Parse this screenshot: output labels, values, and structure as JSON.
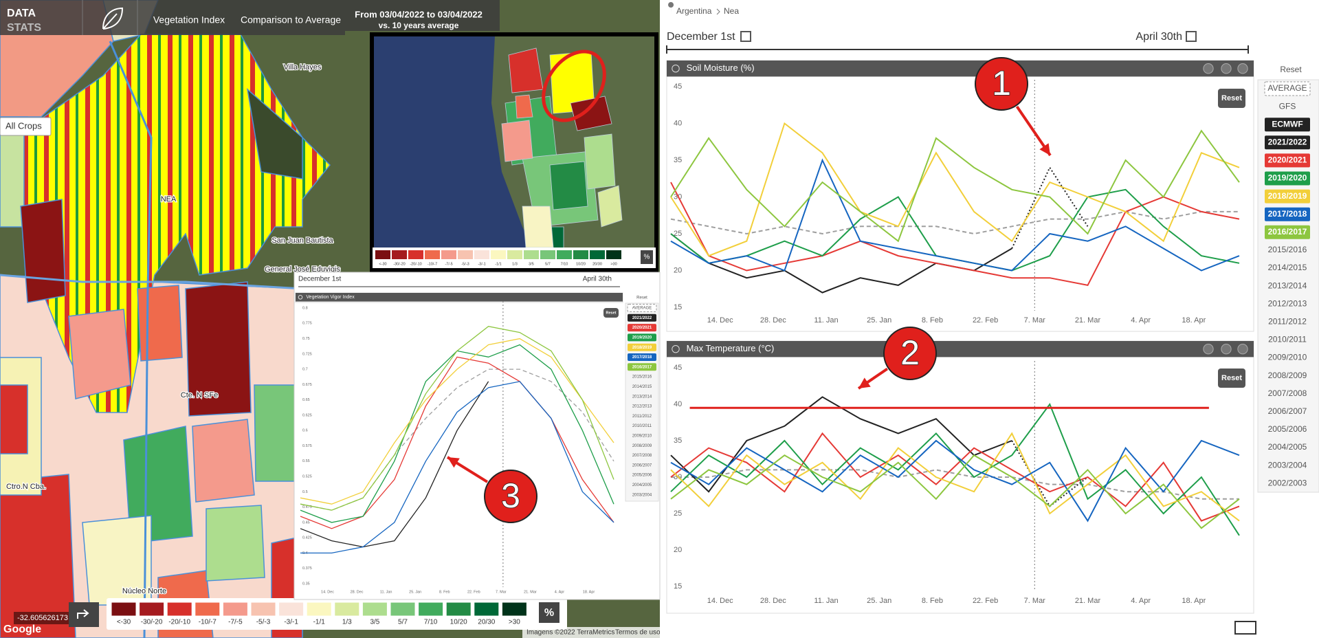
{
  "header": {
    "brand_top": "DATA",
    "brand_bottom": "STATS",
    "tab_index": "Vegetation Index",
    "tab_compare": "Comparison to Average",
    "date_range": "From 03/04/2022 to 03/04/2022",
    "comparison": "vs. 10 years average"
  },
  "map": {
    "labels": [
      "Villa Hayes",
      "NEA",
      "San Juan Bautista",
      "General José Eduvigis",
      "Cte. N SFe",
      "Ctro.N Cba.",
      "Núcleo Norte"
    ],
    "crop_filter": "All Crops",
    "coordinates": "-32.605626173",
    "attribution": [
      "Google",
      "Imagens ©2022 TerraMetrics",
      "Termos de uso"
    ],
    "unit": "%",
    "legend": [
      {
        "label": "<-30",
        "color": "#7b0f12"
      },
      {
        "label": "-30/-20",
        "color": "#a51b1f"
      },
      {
        "label": "-20/-10",
        "color": "#d7302b"
      },
      {
        "label": "-10/-7",
        "color": "#ef6a4c"
      },
      {
        "label": "-7/-5",
        "color": "#f49a8c"
      },
      {
        "label": "-5/-3",
        "color": "#f7c3b0"
      },
      {
        "label": "-3/-1",
        "color": "#fae3da"
      },
      {
        "label": "-1/1",
        "color": "#fbf7c0"
      },
      {
        "label": "1/3",
        "color": "#d9ea9f"
      },
      {
        "label": "3/5",
        "color": "#addd8e"
      },
      {
        "label": "5/7",
        "color": "#78c679"
      },
      {
        "label": "7/10",
        "color": "#41ab5d"
      },
      {
        "label": "10/20",
        "color": "#238b45"
      },
      {
        "label": "20/30",
        "color": "#006837"
      },
      {
        "label": ">30",
        "color": "#00331a"
      }
    ]
  },
  "breadcrumb": [
    "Argentina",
    "Nea"
  ],
  "period": {
    "start": "December 1st",
    "end": "April 30th"
  },
  "legend_panel": {
    "reset": "Reset",
    "gfs": "GFS",
    "older": [
      "2015/2016",
      "2014/2015",
      "2013/2014",
      "2012/2013",
      "2011/2012",
      "2010/2011",
      "2009/2010",
      "2008/2009",
      "2007/2008",
      "2006/2007",
      "2005/2006",
      "2004/2005",
      "2003/2004",
      "2002/2003"
    ]
  },
  "annotations": [
    "1",
    "2",
    "3"
  ],
  "chart_data": [
    {
      "type": "line",
      "title": "Soil Moisture (%)",
      "reset": "Reset",
      "x": [
        0,
        10,
        20,
        30,
        40,
        50,
        60,
        70,
        80,
        90,
        100,
        110,
        120,
        130,
        140,
        150
      ],
      "xlim": [
        0,
        150
      ],
      "ylim": [
        15,
        45
      ],
      "yticks": [
        45,
        40,
        35,
        30,
        25,
        20,
        15
      ],
      "grid": false,
      "marker_x": 96,
      "xticks": [
        {
          "value": 13,
          "label": "14. Dec"
        },
        {
          "value": 27,
          "label": "28. Dec"
        },
        {
          "value": 41,
          "label": "11. Jan"
        },
        {
          "value": 55,
          "label": "25. Jan"
        },
        {
          "value": 69,
          "label": "8. Feb"
        },
        {
          "value": 83,
          "label": "22. Feb"
        },
        {
          "value": 96,
          "label": "7. Mar"
        },
        {
          "value": 110,
          "label": "21. Mar"
        },
        {
          "value": 124,
          "label": "4. Apr"
        },
        {
          "value": 138,
          "label": "18. Apr"
        }
      ],
      "series": [
        {
          "name": "AVERAGE",
          "color": "#9e9e9e",
          "dash": "dashed",
          "values": [
            27,
            26,
            25,
            26,
            25,
            26,
            26,
            26,
            25,
            26,
            27,
            27,
            28,
            27,
            28,
            28
          ]
        },
        {
          "name": "ECMWF",
          "color": "#222222",
          "dash": "dotted",
          "values": [
            null,
            null,
            null,
            null,
            null,
            null,
            null,
            null,
            null,
            23,
            34,
            26,
            null,
            null,
            null,
            null
          ]
        },
        {
          "name": "2021/2022",
          "color": "#222222",
          "values": [
            25,
            21,
            19,
            20,
            17,
            19,
            18,
            21,
            20,
            23,
            null,
            null,
            null,
            null,
            null,
            null
          ]
        },
        {
          "name": "2020/2021",
          "color": "#e53935",
          "values": [
            32,
            22,
            20,
            21,
            22,
            24,
            22,
            21,
            20,
            19,
            19,
            18,
            28,
            30,
            28,
            27
          ]
        },
        {
          "name": "2019/2020",
          "color": "#1e9e4a",
          "values": [
            25,
            21,
            22,
            24,
            22,
            27,
            30,
            22,
            21,
            20,
            22,
            30,
            31,
            26,
            22,
            21
          ]
        },
        {
          "name": "2018/2019",
          "color": "#f2cf3a",
          "values": [
            30,
            22,
            24,
            40,
            36,
            28,
            26,
            36,
            28,
            24,
            32,
            30,
            28,
            24,
            36,
            34
          ]
        },
        {
          "name": "2017/2018",
          "color": "#1565c0",
          "values": [
            24,
            21,
            22,
            20,
            35,
            24,
            23,
            22,
            21,
            20,
            25,
            24,
            26,
            23,
            20,
            22
          ]
        },
        {
          "name": "2016/2017",
          "color": "#8dc63f",
          "values": [
            30,
            38,
            31,
            26,
            32,
            28,
            24,
            38,
            34,
            31,
            30,
            25,
            35,
            30,
            39,
            32
          ]
        }
      ]
    },
    {
      "type": "line",
      "title": "Max Temperature (°C)",
      "reset": "Reset",
      "x": [
        0,
        10,
        20,
        30,
        40,
        50,
        60,
        70,
        80,
        90,
        100,
        110,
        120,
        130,
        140,
        150
      ],
      "xlim": [
        0,
        150
      ],
      "ylim": [
        15,
        45
      ],
      "yticks": [
        45,
        40,
        35,
        30,
        25,
        20,
        15
      ],
      "grid": false,
      "marker_x": 96,
      "reference_line": 39.5,
      "xticks": [
        {
          "value": 13,
          "label": "14. Dec"
        },
        {
          "value": 27,
          "label": "28. Dec"
        },
        {
          "value": 41,
          "label": "11. Jan"
        },
        {
          "value": 55,
          "label": "25. Jan"
        },
        {
          "value": 69,
          "label": "8. Feb"
        },
        {
          "value": 83,
          "label": "22. Feb"
        },
        {
          "value": 96,
          "label": "7. Mar"
        },
        {
          "value": 110,
          "label": "21. Mar"
        },
        {
          "value": 124,
          "label": "4. Apr"
        },
        {
          "value": 138,
          "label": "18. Apr"
        }
      ],
      "series": [
        {
          "color": "#9e9e9e",
          "dash": "dashed",
          "values": [
            30,
            30,
            31,
            31,
            31,
            31,
            30,
            31,
            30,
            30,
            29,
            29,
            28,
            28,
            27,
            27
          ]
        },
        {
          "color": "#222222",
          "dash": "dotted",
          "values": [
            null,
            null,
            null,
            null,
            null,
            null,
            null,
            null,
            null,
            35,
            26,
            30,
            null,
            null,
            null,
            null
          ]
        },
        {
          "color": "#222222",
          "values": [
            33,
            28,
            35,
            37,
            41,
            38,
            36,
            38,
            33,
            35,
            null,
            null,
            null,
            null,
            null,
            null
          ]
        },
        {
          "color": "#e53935",
          "values": [
            30,
            34,
            32,
            28,
            36,
            30,
            33,
            29,
            34,
            31,
            28,
            30,
            26,
            32,
            24,
            26
          ]
        },
        {
          "color": "#1e9e4a",
          "values": [
            28,
            33,
            30,
            35,
            29,
            34,
            31,
            36,
            30,
            33,
            40,
            27,
            31,
            25,
            30,
            22
          ]
        },
        {
          "color": "#f2cf3a",
          "values": [
            31,
            26,
            33,
            29,
            32,
            27,
            34,
            30,
            28,
            36,
            25,
            29,
            33,
            26,
            28,
            24
          ]
        },
        {
          "color": "#1565c0",
          "values": [
            32,
            29,
            34,
            31,
            28,
            33,
            30,
            35,
            31,
            29,
            32,
            24,
            34,
            28,
            35,
            33
          ]
        },
        {
          "color": "#8dc63f",
          "values": [
            27,
            31,
            29,
            33,
            30,
            28,
            32,
            27,
            33,
            30,
            26,
            31,
            25,
            29,
            23,
            27
          ]
        }
      ]
    },
    {
      "type": "line",
      "title": "Vegetation Vigor Index",
      "reset": "Reset",
      "x": [
        0,
        15,
        30,
        45,
        60,
        75,
        90,
        105,
        120,
        135,
        150
      ],
      "xlim": [
        0,
        150
      ],
      "ylim": [
        0.35,
        0.8
      ],
      "grid": false,
      "marker_x": 97,
      "yticks": [
        0.8,
        0.775,
        0.75,
        0.725,
        0.7,
        0.675,
        0.65,
        0.625,
        0.6,
        0.575,
        0.55,
        0.525,
        0.5,
        0.475,
        0.45,
        0.425,
        0.4,
        0.375,
        0.35
      ],
      "xticks": [
        {
          "value": 13,
          "label": "14. Dec"
        },
        {
          "value": 27,
          "label": "28. Dec"
        },
        {
          "value": 41,
          "label": "11. Jan"
        },
        {
          "value": 55,
          "label": "25. Jan"
        },
        {
          "value": 69,
          "label": "8. Feb"
        },
        {
          "value": 83,
          "label": "22. Feb"
        },
        {
          "value": 96,
          "label": "7. Mar"
        },
        {
          "value": 110,
          "label": "21. Mar"
        },
        {
          "value": 124,
          "label": "4. Apr"
        },
        {
          "value": 138,
          "label": "18. Apr"
        }
      ],
      "series": [
        {
          "name": "AVERAGE",
          "color": "#9e9e9e",
          "dash": "dashed",
          "values": [
            0.48,
            0.47,
            0.49,
            0.56,
            0.62,
            0.67,
            0.7,
            0.7,
            0.68,
            0.63,
            0.55
          ]
        },
        {
          "name": "2021/2022",
          "color": "#222222",
          "values": [
            0.44,
            0.42,
            0.41,
            0.42,
            0.49,
            0.6,
            0.68,
            null,
            null,
            null,
            null
          ]
        },
        {
          "name": "2020/2021",
          "color": "#e53935",
          "values": [
            0.46,
            0.44,
            0.46,
            0.52,
            0.64,
            0.72,
            0.71,
            0.68,
            0.62,
            0.52,
            0.45
          ]
        },
        {
          "name": "2019/2020",
          "color": "#1e9e4a",
          "values": [
            0.47,
            0.45,
            0.46,
            0.55,
            0.68,
            0.73,
            0.72,
            0.74,
            0.7,
            0.6,
            0.48
          ]
        },
        {
          "name": "2018/2019",
          "color": "#f2cf3a",
          "values": [
            0.49,
            0.48,
            0.5,
            0.58,
            0.65,
            0.7,
            0.74,
            0.75,
            0.72,
            0.65,
            0.58
          ]
        },
        {
          "name": "2017/2018",
          "color": "#1565c0",
          "values": [
            0.4,
            0.4,
            0.41,
            0.45,
            0.55,
            0.63,
            0.67,
            0.68,
            0.62,
            0.5,
            0.45
          ]
        },
        {
          "name": "2016/2017",
          "color": "#8dc63f",
          "values": [
            0.48,
            0.47,
            0.49,
            0.56,
            0.66,
            0.73,
            0.77,
            0.76,
            0.73,
            0.65,
            0.52
          ]
        }
      ],
      "other_seasons": [
        "2015/2016",
        "2014/2015",
        "2013/2014",
        "2012/2013",
        "2011/2012",
        "2010/2011",
        "2009/2010",
        "2008/2009",
        "2007/2008",
        "2006/2007",
        "2005/2006",
        "2004/2005",
        "2003/2004"
      ]
    }
  ]
}
